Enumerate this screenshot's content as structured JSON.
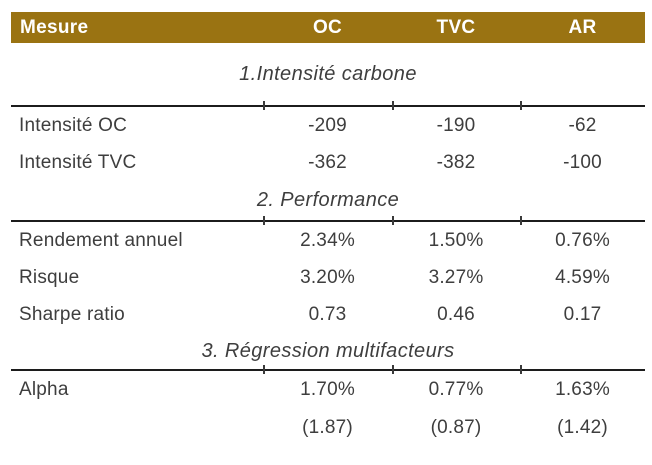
{
  "table": {
    "header": {
      "measure_label": "Mesure",
      "columns": [
        "OC",
        "TVC",
        "AR"
      ]
    },
    "sections": [
      {
        "title": "1.Intensité carbone",
        "rows": [
          {
            "label": "Intensité OC",
            "values": [
              "-209",
              "-190",
              "-62"
            ]
          },
          {
            "label": "Intensité TVC",
            "values": [
              "-362",
              "-382",
              "-100"
            ]
          }
        ]
      },
      {
        "title": "2. Performance",
        "rows": [
          {
            "label": "Rendement annuel",
            "values": [
              "2.34%",
              "1.50%",
              "0.76%"
            ]
          },
          {
            "label": "Risque",
            "values": [
              "3.20%",
              "3.27%",
              "4.59%"
            ]
          },
          {
            "label": "Sharpe ratio",
            "values": [
              "0.73",
              "0.46",
              "0.17"
            ]
          }
        ]
      },
      {
        "title": "3. Régression multifacteurs",
        "rows": [
          {
            "label": "Alpha",
            "values": [
              "1.70%",
              "0.77%",
              "1.63%"
            ]
          },
          {
            "label": "",
            "values": [
              "(1.87)",
              "(0.87)",
              "(1.42)"
            ]
          }
        ]
      }
    ],
    "colors": {
      "header_bg": "#9A7312",
      "header_text": "#FFFFFF",
      "body_text": "#3E3E3E",
      "rule": "#1C1C1C"
    }
  }
}
